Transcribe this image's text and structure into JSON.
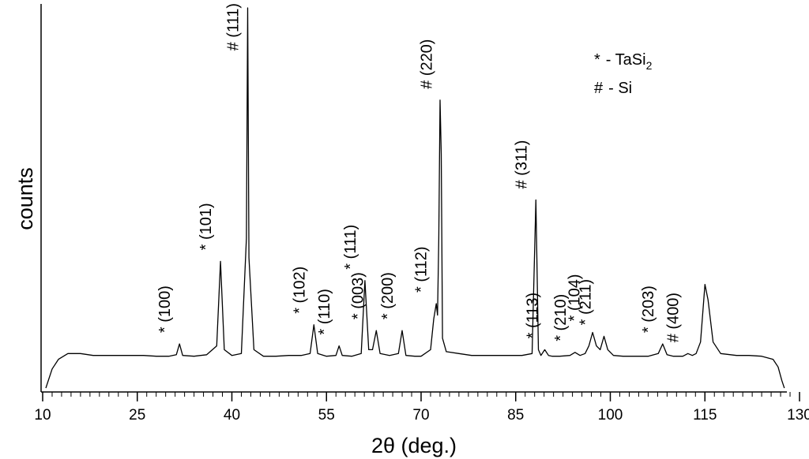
{
  "chart_data": {
    "type": "line",
    "title": "",
    "xlabel": "2θ (deg.)",
    "ylabel": "counts",
    "xlim": [
      10,
      130
    ],
    "ylim": [
      0,
      100
    ],
    "xticks": [
      10,
      25,
      40,
      55,
      70,
      85,
      100,
      115,
      130
    ],
    "grid": false,
    "legend": {
      "placement": "top-right",
      "entries": [
        {
          "symbol": "*",
          "text": "- TaSi",
          "subscript": "2"
        },
        {
          "symbol": "#",
          "text": "- Si"
        }
      ]
    },
    "series": [
      {
        "x": [
          10.5,
          11.5,
          12.5,
          14,
          16,
          18,
          20,
          22,
          24,
          26,
          28,
          30,
          31.2,
          31.7,
          32.2,
          34,
          36,
          37.6,
          38.2,
          38.8,
          40,
          41.5,
          42.3,
          42.5,
          42.7,
          43.5,
          45,
          47,
          49,
          51,
          52.4,
          53,
          53.6,
          55,
          56.5,
          57,
          57.5,
          59,
          60.5,
          61.1,
          61.7,
          62.3,
          62.9,
          63.5,
          65,
          66.4,
          67,
          67.6,
          69,
          70,
          71.5,
          72,
          72.4,
          72.6,
          72.8,
          73,
          73.2,
          73.4,
          74,
          76,
          78,
          80,
          82,
          84,
          86,
          87.6,
          88.2,
          88.6,
          89,
          89.6,
          90.2,
          90.8,
          92,
          93.6,
          94.4,
          95.2,
          96,
          96.6,
          97.2,
          97.8,
          98.4,
          99,
          99.6,
          100.5,
          102,
          104,
          106,
          107.6,
          108.3,
          109,
          110,
          111.5,
          112.3,
          113,
          113.6,
          114.3,
          115,
          115.5,
          116.3,
          117.5,
          120,
          122,
          124,
          125.8,
          126.6,
          127.2,
          127.6
        ],
        "values": [
          1,
          6,
          8.5,
          10,
          10,
          9.5,
          9.5,
          9.5,
          9.5,
          9.5,
          9.3,
          9.3,
          9.7,
          12.5,
          9.5,
          9.3,
          9.7,
          12,
          34,
          11,
          9.5,
          10,
          40,
          100,
          35,
          11,
          9.3,
          9.3,
          9.5,
          9.5,
          10,
          17.5,
          10,
          9.3,
          9.5,
          12,
          9.5,
          9.3,
          10,
          29,
          11,
          11,
          16,
          10,
          9.5,
          10,
          16,
          9.5,
          9.3,
          9.3,
          11,
          19,
          23,
          20,
          40,
          76,
          62,
          14,
          10.5,
          10,
          9.5,
          9.5,
          9.5,
          9.5,
          9.5,
          10,
          50,
          11,
          9.5,
          11,
          9.5,
          9.3,
          9.3,
          9.5,
          10.3,
          9.5,
          10,
          12,
          15.5,
          12,
          11,
          14.5,
          11,
          9.5,
          9.3,
          9.3,
          9.3,
          10,
          12.5,
          9.7,
          9.3,
          9.3,
          10,
          9.5,
          10,
          13,
          28,
          24,
          13,
          10,
          9.5,
          9.5,
          9.3,
          8.5,
          6.5,
          3,
          1
        ]
      }
    ],
    "annotations": [
      {
        "text": "* (100)",
        "x": 31.7,
        "y": 12.5
      },
      {
        "text": "* (101)",
        "x": 38.2,
        "y": 34
      },
      {
        "text": "# (111)",
        "x": 42.5,
        "y": 100
      },
      {
        "text": "* (102)",
        "x": 53,
        "y": 17.5
      },
      {
        "text": "* (110)",
        "x": 57,
        "y": 12
      },
      {
        "text": "* (111)",
        "x": 61.1,
        "y": 29
      },
      {
        "text": "* (003)",
        "x": 62.3,
        "y": 16
      },
      {
        "text": "* (200)",
        "x": 67,
        "y": 16
      },
      {
        "text": "* (112)",
        "x": 72.3,
        "y": 23
      },
      {
        "text": "# (220)",
        "x": 73.2,
        "y": 76
      },
      {
        "text": "# (311)",
        "x": 88.2,
        "y": 50
      },
      {
        "text": "* (113)",
        "x": 90,
        "y": 11
      },
      {
        "text": "* (210)",
        "x": 94.4,
        "y": 10.3
      },
      {
        "text": "* (104)",
        "x": 96.6,
        "y": 15.5
      },
      {
        "text": "* (211)",
        "x": 98.4,
        "y": 14.5
      },
      {
        "text": "* (203)",
        "x": 108.3,
        "y": 12.5
      },
      {
        "text": "# (400)",
        "x": 112.3,
        "y": 10
      },
      {
        "text": "",
        "x": 115,
        "y": 28
      }
    ]
  }
}
